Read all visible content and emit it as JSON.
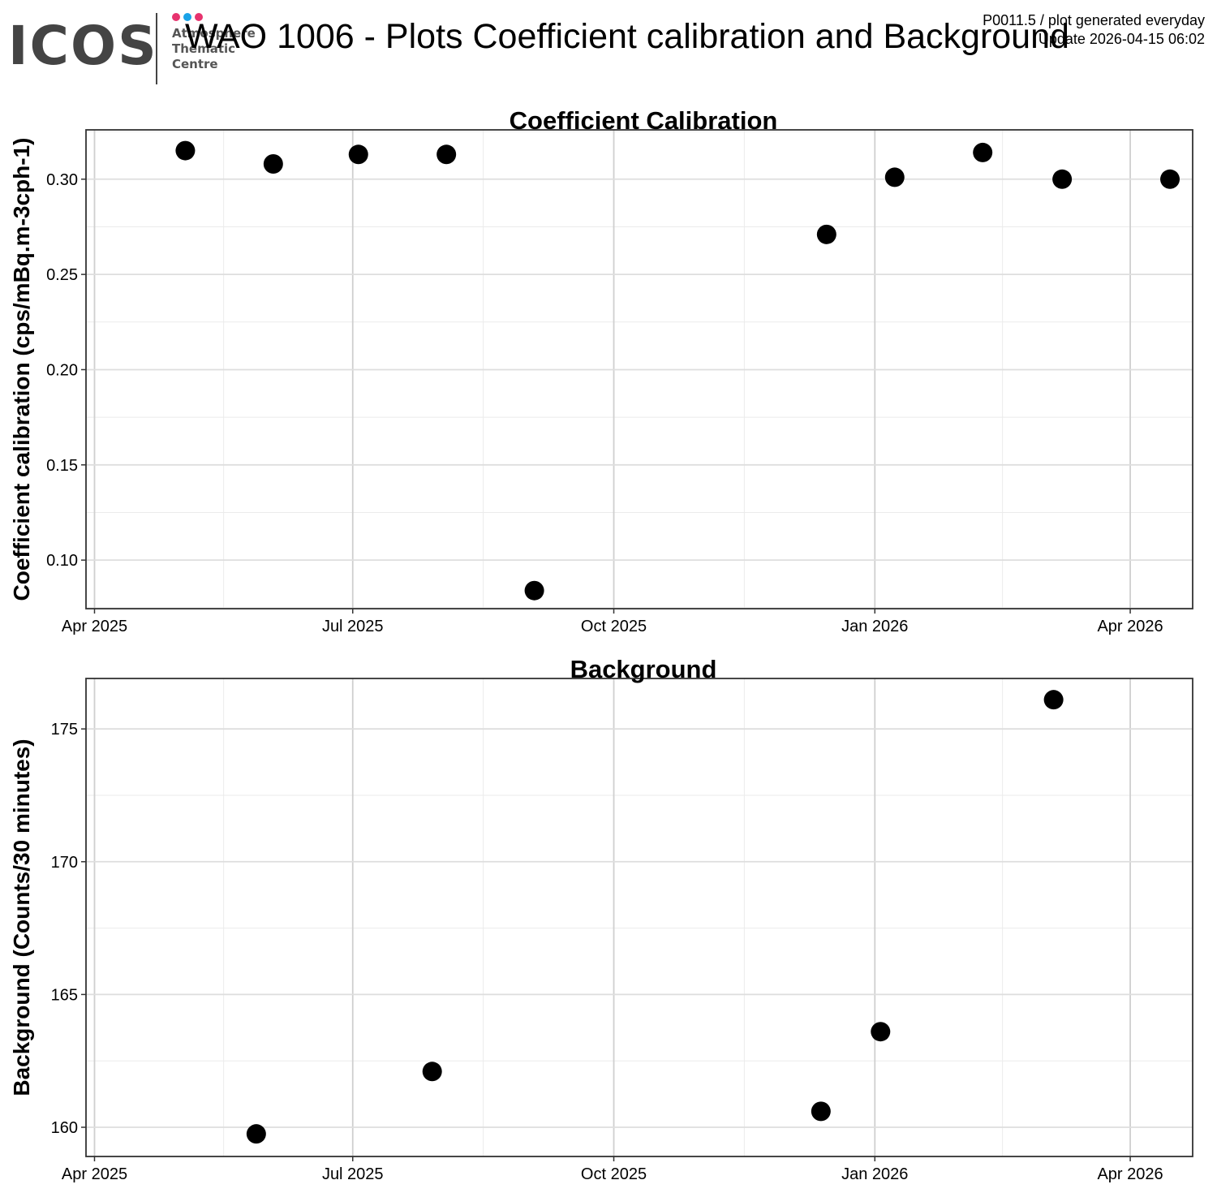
{
  "header": {
    "logo_text": "ICOS",
    "logo_subtitle_lines": [
      "Atmosphere",
      "Thematic",
      "Centre"
    ],
    "logo_dot_colors": [
      "#e7336e",
      "#1aa3e8",
      "#e7336e"
    ],
    "title": "WAO 1006 - Plots Coefficient calibration and Background",
    "meta_line1": "P0011.5 / plot generated everyday",
    "meta_line2": "Update  2026-04-15 06:02"
  },
  "chart_data": [
    {
      "type": "scatter",
      "title": "Coefficient Calibration",
      "xlabel": "",
      "ylabel": "Coefficient calibration (cps/mBq.m-3cph-1)",
      "x_axis_type": "date",
      "xlim": [
        "2025-03-29",
        "2026-04-23"
      ],
      "ylim": [
        0.0745,
        0.3259
      ],
      "x_ticks": [
        {
          "value": "2025-04-01",
          "label": "Apr 2025"
        },
        {
          "value": "2025-07-01",
          "label": "Jul 2025"
        },
        {
          "value": "2025-10-01",
          "label": "Oct 2025"
        },
        {
          "value": "2026-01-01",
          "label": "Jan 2026"
        },
        {
          "value": "2026-04-01",
          "label": "Apr 2026"
        }
      ],
      "y_ticks": [
        {
          "value": 0.1,
          "label": "0.10"
        },
        {
          "value": 0.15,
          "label": "0.15"
        },
        {
          "value": 0.2,
          "label": "0.20"
        },
        {
          "value": 0.25,
          "label": "0.25"
        },
        {
          "value": 0.3,
          "label": "0.30"
        }
      ],
      "grid": true,
      "point_color": "#000000",
      "points": [
        {
          "x": "2025-05-03",
          "y": 0.315
        },
        {
          "x": "2025-06-03",
          "y": 0.308
        },
        {
          "x": "2025-07-03",
          "y": 0.313
        },
        {
          "x": "2025-08-03",
          "y": 0.313
        },
        {
          "x": "2025-09-03",
          "y": 0.084
        },
        {
          "x": "2025-12-15",
          "y": 0.271
        },
        {
          "x": "2026-01-08",
          "y": 0.301
        },
        {
          "x": "2026-02-08",
          "y": 0.314
        },
        {
          "x": "2026-03-08",
          "y": 0.3
        },
        {
          "x": "2026-04-15",
          "y": 0.3
        }
      ]
    },
    {
      "type": "scatter",
      "title": "Background",
      "xlabel": "",
      "ylabel": "Background (Counts/30 minutes)",
      "x_axis_type": "date",
      "xlim": [
        "2025-03-29",
        "2026-04-23"
      ],
      "ylim": [
        158.9,
        176.9
      ],
      "x_ticks": [
        {
          "value": "2025-04-01",
          "label": "Apr 2025"
        },
        {
          "value": "2025-07-01",
          "label": "Jul 2025"
        },
        {
          "value": "2025-10-01",
          "label": "Oct 2025"
        },
        {
          "value": "2026-01-01",
          "label": "Jan 2026"
        },
        {
          "value": "2026-04-01",
          "label": "Apr 2026"
        }
      ],
      "y_ticks": [
        {
          "value": 160,
          "label": "160"
        },
        {
          "value": 165,
          "label": "165"
        },
        {
          "value": 170,
          "label": "170"
        },
        {
          "value": 175,
          "label": "175"
        }
      ],
      "grid": true,
      "point_color": "#000000",
      "points": [
        {
          "x": "2025-05-28",
          "y": 159.75
        },
        {
          "x": "2025-07-29",
          "y": 162.1
        },
        {
          "x": "2025-12-13",
          "y": 160.6
        },
        {
          "x": "2026-01-03",
          "y": 163.6
        },
        {
          "x": "2026-03-05",
          "y": 176.1
        }
      ]
    }
  ]
}
